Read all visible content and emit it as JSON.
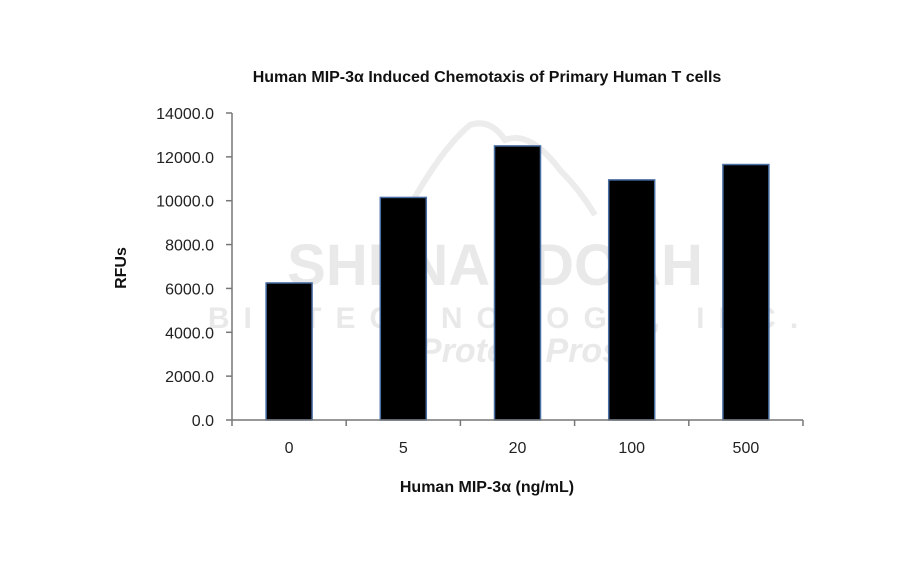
{
  "chart_data": {
    "type": "bar",
    "title": "Human MIP-3α Induced Chemotaxis of Primary Human T cells",
    "xlabel": "Human MIP-3α (ng/mL)",
    "ylabel": "RFUs",
    "categories": [
      "0",
      "5",
      "20",
      "100",
      "500"
    ],
    "values": [
      6250,
      10150,
      12500,
      10950,
      11650
    ],
    "ylim": [
      0,
      14000
    ],
    "yticks": [
      0,
      2000,
      4000,
      6000,
      8000,
      10000,
      12000,
      14000
    ],
    "ytick_labels": [
      "0.0",
      "2000.0",
      "4000.0",
      "6000.0",
      "8000.0",
      "10000.0",
      "12000.0",
      "14000.0"
    ],
    "grid": false,
    "legend": "none",
    "colors": {
      "bar_fill": "#000000",
      "bar_edge": "#4a6fa5",
      "axis": "#777777"
    }
  },
  "watermark": {
    "line1": "SHENANDOAH",
    "line2": "BIOTECHNOLOGY, INC.",
    "line3": "Protein Pros"
  }
}
